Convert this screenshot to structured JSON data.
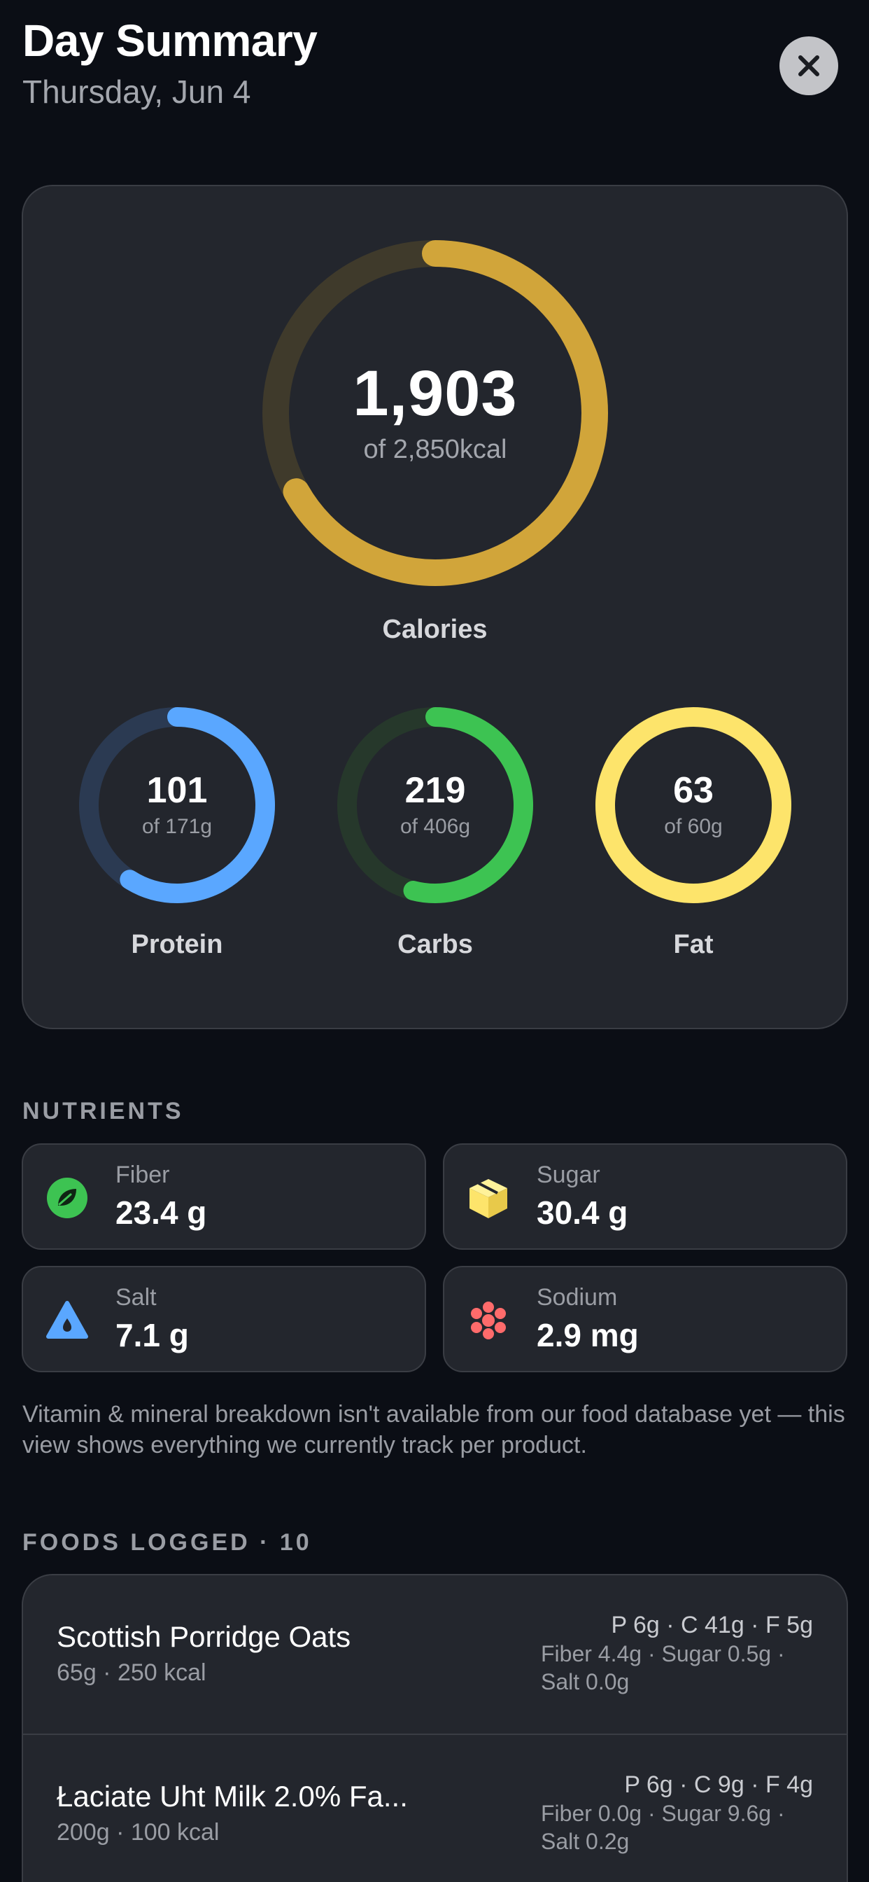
{
  "header": {
    "title": "Day Summary",
    "date": "Thursday, Jun 4"
  },
  "calories": {
    "value": "1,903",
    "goal_text": "of 2,850kcal",
    "label": "Calories",
    "progress": 0.668,
    "color": "#d1a53a",
    "track_color": "#3f3a2b"
  },
  "macros": [
    {
      "key": "protein",
      "value": "101",
      "goal_text": "of 171g",
      "label": "Protein",
      "progress": 0.59,
      "color": "#5aa7ff",
      "track_color": "#2b3a52"
    },
    {
      "key": "carbs",
      "value": "219",
      "goal_text": "of 406g",
      "label": "Carbs",
      "progress": 0.54,
      "color": "#3dc352",
      "track_color": "#26382b"
    },
    {
      "key": "fat",
      "value": "63",
      "goal_text": "of 60g",
      "label": "Fat",
      "progress": 1.0,
      "color": "#fde46b",
      "track_color": "#4a4528"
    }
  ],
  "nutrients": {
    "header": "NUTRIENTS",
    "items": [
      {
        "label": "Fiber",
        "value": "23.4 g",
        "icon": "leaf-icon",
        "color": "#3dc352"
      },
      {
        "label": "Sugar",
        "value": "30.4 g",
        "icon": "cube-icon",
        "color": "#fde46b"
      },
      {
        "label": "Salt",
        "value": "7.1 g",
        "icon": "drop-icon",
        "color": "#5aa7ff"
      },
      {
        "label": "Sodium",
        "value": "2.9 mg",
        "icon": "molecule-icon",
        "color": "#ff6b6b"
      }
    ],
    "note": "Vitamin & mineral breakdown isn't available from our food database yet — this view shows everything we currently track per product."
  },
  "foods": {
    "header": "FOODS LOGGED · 10",
    "items": [
      {
        "name": "Scottish Porridge Oats",
        "sub": "65g · 250 kcal",
        "macros": "P 6g · C 41g · F 5g",
        "extra_line1": "Fiber 4.4g · Sugar 0.5g ·",
        "extra_line2": "Salt 0.0g"
      },
      {
        "name": "Łaciate Uht Milk 2.0% Fa...",
        "sub": "200g · 100 kcal",
        "macros": "P 6g · C 9g · F 4g",
        "extra_line1": "Fiber 0.0g · Sugar 9.6g ·",
        "extra_line2": "Salt 0.2g"
      }
    ]
  }
}
